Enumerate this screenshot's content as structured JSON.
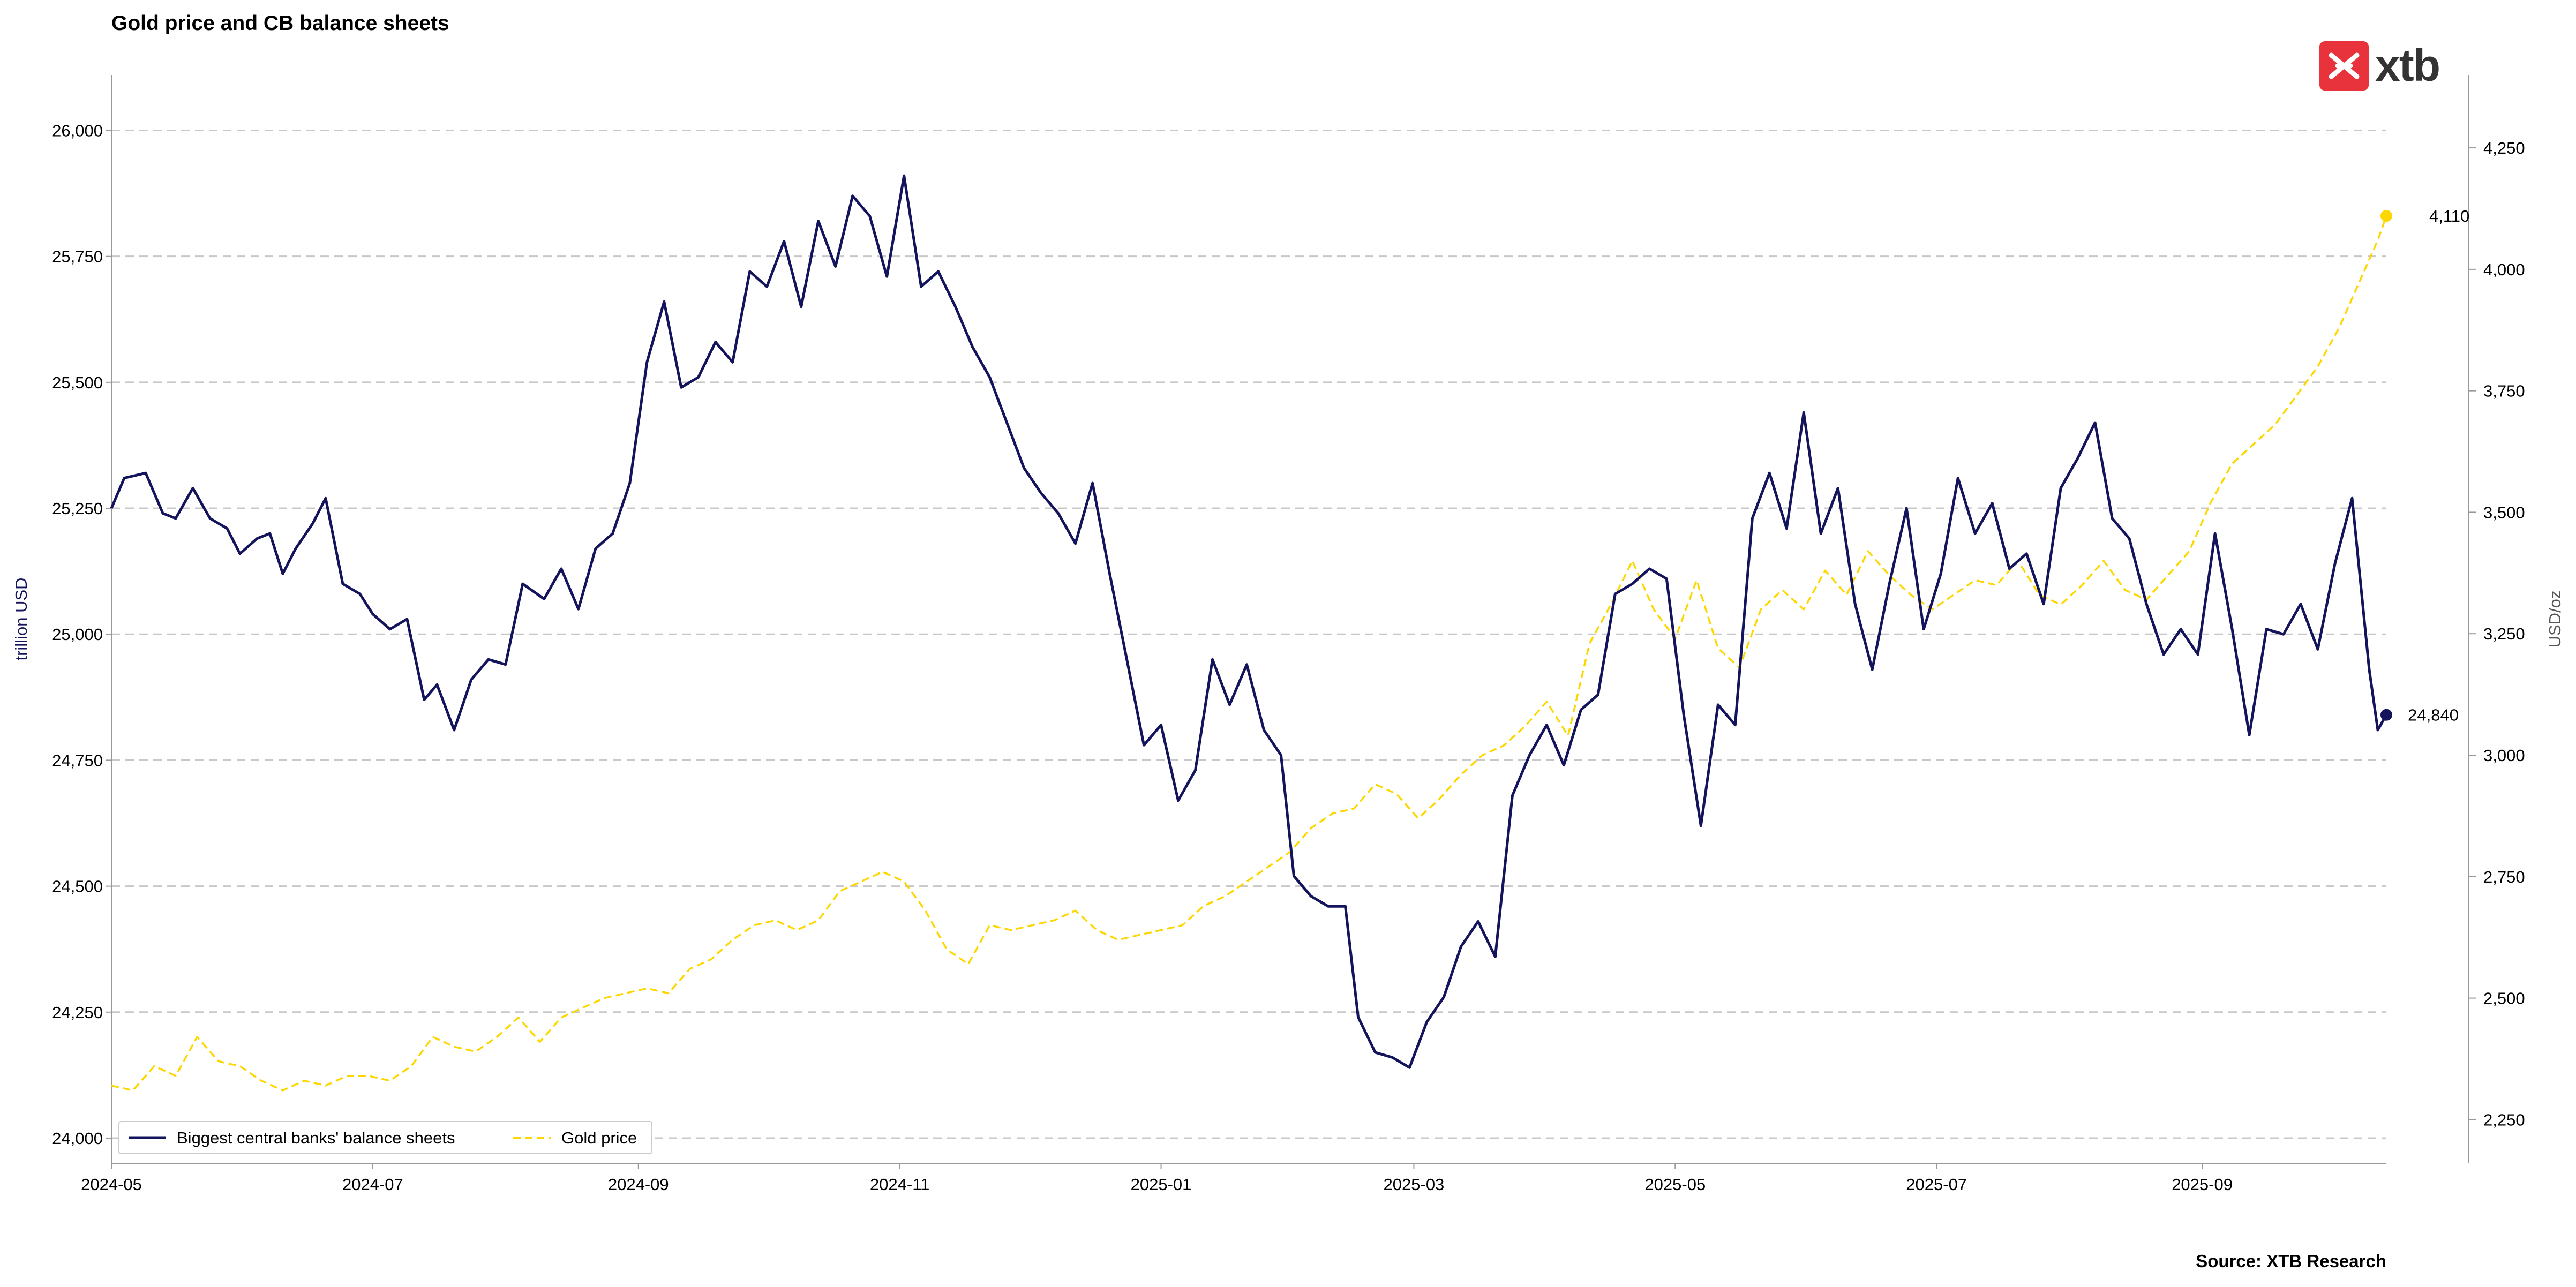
{
  "brand": {
    "name": "xtb",
    "colors": {
      "logo_red": "#E8323C",
      "logo_text": "#333333"
    }
  },
  "source": "Source: XTB Research",
  "colors": {
    "cb_line": "#14145C",
    "gold_line": "#FFD700",
    "grid": "#C8C8C8",
    "axis": "#999999"
  },
  "chart_data": {
    "type": "line",
    "title": "Gold price and CB balance sheets",
    "ylabel_left": "trillion USD",
    "ylabel_right": "USD/oz",
    "xlim": [
      "2024-05-01",
      "2025-10-14"
    ],
    "ylim_left": [
      23950,
      26110
    ],
    "ylim_right": [
      2160,
      4400
    ],
    "grid": "horizontal dashed",
    "legend_position": "bottom-left",
    "x_ticks": [
      "2024-05",
      "2024-07",
      "2024-09",
      "2024-11",
      "2025-01",
      "2025-03",
      "2025-05",
      "2025-07",
      "2025-09"
    ],
    "x_tick_dates": [
      "2024-05-01",
      "2024-07-01",
      "2024-09-01",
      "2024-11-01",
      "2025-01-01",
      "2025-03-01",
      "2025-05-01",
      "2025-07-01",
      "2025-09-01"
    ],
    "y_ticks_left": [
      "24,000",
      "24,250",
      "24,500",
      "24,750",
      "25,000",
      "25,250",
      "25,500",
      "25,750",
      "26,000"
    ],
    "y_tick_values_left": [
      24000,
      24250,
      24500,
      24750,
      25000,
      25250,
      25500,
      25750,
      26000
    ],
    "y_ticks_right": [
      "2,250",
      "2,500",
      "2,750",
      "3,000",
      "3,250",
      "3,500",
      "3,750",
      "4,000",
      "4,250"
    ],
    "y_tick_values_right": [
      2250,
      2500,
      2750,
      3000,
      3250,
      3500,
      3750,
      4000,
      4250
    ],
    "series": [
      {
        "name": "Biggest central banks' balance sheets",
        "axis": "left",
        "style": "solid",
        "last_label": "24,840",
        "points": [
          [
            "2024-05-01",
            25250
          ],
          [
            "2024-05-04",
            25310
          ],
          [
            "2024-05-09",
            25320
          ],
          [
            "2024-05-13",
            25240
          ],
          [
            "2024-05-16",
            25230
          ],
          [
            "2024-05-20",
            25290
          ],
          [
            "2024-05-24",
            25230
          ],
          [
            "2024-05-28",
            25210
          ],
          [
            "2024-05-31",
            25160
          ],
          [
            "2024-06-04",
            25190
          ],
          [
            "2024-06-07",
            25200
          ],
          [
            "2024-06-10",
            25120
          ],
          [
            "2024-06-13",
            25170
          ],
          [
            "2024-06-17",
            25220
          ],
          [
            "2024-06-20",
            25270
          ],
          [
            "2024-06-24",
            25100
          ],
          [
            "2024-06-28",
            25080
          ],
          [
            "2024-07-01",
            25040
          ],
          [
            "2024-07-05",
            25010
          ],
          [
            "2024-07-09",
            25030
          ],
          [
            "2024-07-13",
            24870
          ],
          [
            "2024-07-16",
            24900
          ],
          [
            "2024-07-20",
            24810
          ],
          [
            "2024-07-24",
            24910
          ],
          [
            "2024-07-28",
            24950
          ],
          [
            "2024-08-01",
            24940
          ],
          [
            "2024-08-05",
            25100
          ],
          [
            "2024-08-10",
            25070
          ],
          [
            "2024-08-14",
            25130
          ],
          [
            "2024-08-18",
            25050
          ],
          [
            "2024-08-22",
            25170
          ],
          [
            "2024-08-26",
            25200
          ],
          [
            "2024-08-30",
            25300
          ],
          [
            "2024-09-03",
            25540
          ],
          [
            "2024-09-07",
            25660
          ],
          [
            "2024-09-11",
            25490
          ],
          [
            "2024-09-15",
            25510
          ],
          [
            "2024-09-19",
            25580
          ],
          [
            "2024-09-23",
            25540
          ],
          [
            "2024-09-27",
            25720
          ],
          [
            "2024-10-01",
            25690
          ],
          [
            "2024-10-05",
            25780
          ],
          [
            "2024-10-09",
            25650
          ],
          [
            "2024-10-13",
            25820
          ],
          [
            "2024-10-17",
            25730
          ],
          [
            "2024-10-21",
            25870
          ],
          [
            "2024-10-25",
            25830
          ],
          [
            "2024-10-29",
            25710
          ],
          [
            "2024-11-02",
            25910
          ],
          [
            "2024-11-06",
            25690
          ],
          [
            "2024-11-10",
            25720
          ],
          [
            "2024-11-14",
            25650
          ],
          [
            "2024-11-18",
            25570
          ],
          [
            "2024-11-22",
            25510
          ],
          [
            "2024-11-26",
            25420
          ],
          [
            "2024-11-30",
            25330
          ],
          [
            "2024-12-04",
            25280
          ],
          [
            "2024-12-08",
            25240
          ],
          [
            "2024-12-12",
            25180
          ],
          [
            "2024-12-16",
            25300
          ],
          [
            "2024-12-20",
            25120
          ],
          [
            "2024-12-24",
            24950
          ],
          [
            "2024-12-28",
            24780
          ],
          [
            "2025-01-01",
            24820
          ],
          [
            "2025-01-05",
            24670
          ],
          [
            "2025-01-09",
            24730
          ],
          [
            "2025-01-13",
            24950
          ],
          [
            "2025-01-17",
            24860
          ],
          [
            "2025-01-21",
            24940
          ],
          [
            "2025-01-25",
            24810
          ],
          [
            "2025-01-29",
            24760
          ],
          [
            "2025-02-01",
            24520
          ],
          [
            "2025-02-05",
            24480
          ],
          [
            "2025-02-09",
            24460
          ],
          [
            "2025-02-13",
            24460
          ],
          [
            "2025-02-16",
            24240
          ],
          [
            "2025-02-20",
            24170
          ],
          [
            "2025-02-24",
            24160
          ],
          [
            "2025-02-28",
            24140
          ],
          [
            "2025-03-04",
            24230
          ],
          [
            "2025-03-08",
            24280
          ],
          [
            "2025-03-12",
            24380
          ],
          [
            "2025-03-16",
            24430
          ],
          [
            "2025-03-20",
            24360
          ],
          [
            "2025-03-24",
            24680
          ],
          [
            "2025-03-28",
            24760
          ],
          [
            "2025-04-01",
            24820
          ],
          [
            "2025-04-05",
            24740
          ],
          [
            "2025-04-09",
            24850
          ],
          [
            "2025-04-13",
            24880
          ],
          [
            "2025-04-17",
            25080
          ],
          [
            "2025-04-21",
            25100
          ],
          [
            "2025-04-25",
            25130
          ],
          [
            "2025-04-29",
            25110
          ],
          [
            "2025-05-03",
            24840
          ],
          [
            "2025-05-07",
            24620
          ],
          [
            "2025-05-11",
            24860
          ],
          [
            "2025-05-15",
            24820
          ],
          [
            "2025-05-19",
            25230
          ],
          [
            "2025-05-23",
            25320
          ],
          [
            "2025-05-27",
            25210
          ],
          [
            "2025-05-31",
            25440
          ],
          [
            "2025-06-04",
            25200
          ],
          [
            "2025-06-08",
            25290
          ],
          [
            "2025-06-12",
            25060
          ],
          [
            "2025-06-16",
            24930
          ],
          [
            "2025-06-20",
            25100
          ],
          [
            "2025-06-24",
            25250
          ],
          [
            "2025-06-28",
            25010
          ],
          [
            "2025-07-02",
            25120
          ],
          [
            "2025-07-06",
            25310
          ],
          [
            "2025-07-10",
            25200
          ],
          [
            "2025-07-14",
            25260
          ],
          [
            "2025-07-18",
            25130
          ],
          [
            "2025-07-22",
            25160
          ],
          [
            "2025-07-26",
            25060
          ],
          [
            "2025-07-30",
            25290
          ],
          [
            "2025-08-03",
            25350
          ],
          [
            "2025-08-07",
            25420
          ],
          [
            "2025-08-11",
            25230
          ],
          [
            "2025-08-15",
            25190
          ],
          [
            "2025-08-19",
            25060
          ],
          [
            "2025-08-23",
            24960
          ],
          [
            "2025-08-27",
            25010
          ],
          [
            "2025-08-31",
            24960
          ],
          [
            "2025-09-04",
            25200
          ],
          [
            "2025-09-08",
            25010
          ],
          [
            "2025-09-12",
            24800
          ],
          [
            "2025-09-16",
            25010
          ],
          [
            "2025-09-20",
            25000
          ],
          [
            "2025-09-24",
            25060
          ],
          [
            "2025-09-28",
            24970
          ],
          [
            "2025-10-02",
            25140
          ],
          [
            "2025-10-06",
            25270
          ],
          [
            "2025-10-10",
            24930
          ],
          [
            "2025-10-12",
            24810
          ],
          [
            "2025-10-14",
            24840
          ]
        ]
      },
      {
        "name": "Gold price",
        "axis": "right",
        "style": "dashed",
        "last_label": "4,110",
        "points": [
          [
            "2024-05-01",
            2320
          ],
          [
            "2024-05-06",
            2310
          ],
          [
            "2024-05-11",
            2360
          ],
          [
            "2024-05-16",
            2340
          ],
          [
            "2024-05-21",
            2420
          ],
          [
            "2024-05-26",
            2370
          ],
          [
            "2024-05-31",
            2360
          ],
          [
            "2024-06-05",
            2330
          ],
          [
            "2024-06-10",
            2310
          ],
          [
            "2024-06-15",
            2330
          ],
          [
            "2024-06-20",
            2320
          ],
          [
            "2024-06-25",
            2340
          ],
          [
            "2024-06-30",
            2340
          ],
          [
            "2024-07-05",
            2330
          ],
          [
            "2024-07-10",
            2360
          ],
          [
            "2024-07-15",
            2420
          ],
          [
            "2024-07-20",
            2400
          ],
          [
            "2024-07-25",
            2390
          ],
          [
            "2024-07-30",
            2420
          ],
          [
            "2024-08-04",
            2460
          ],
          [
            "2024-08-09",
            2410
          ],
          [
            "2024-08-14",
            2460
          ],
          [
            "2024-08-19",
            2480
          ],
          [
            "2024-08-24",
            2500
          ],
          [
            "2024-08-29",
            2510
          ],
          [
            "2024-09-03",
            2520
          ],
          [
            "2024-09-08",
            2510
          ],
          [
            "2024-09-13",
            2560
          ],
          [
            "2024-09-18",
            2580
          ],
          [
            "2024-09-23",
            2620
          ],
          [
            "2024-09-28",
            2650
          ],
          [
            "2024-10-03",
            2660
          ],
          [
            "2024-10-08",
            2640
          ],
          [
            "2024-10-13",
            2660
          ],
          [
            "2024-10-18",
            2720
          ],
          [
            "2024-10-23",
            2740
          ],
          [
            "2024-10-28",
            2760
          ],
          [
            "2024-11-02",
            2740
          ],
          [
            "2024-11-07",
            2680
          ],
          [
            "2024-11-12",
            2600
          ],
          [
            "2024-11-17",
            2570
          ],
          [
            "2024-11-22",
            2650
          ],
          [
            "2024-11-27",
            2640
          ],
          [
            "2024-12-02",
            2650
          ],
          [
            "2024-12-07",
            2660
          ],
          [
            "2024-12-12",
            2680
          ],
          [
            "2024-12-17",
            2640
          ],
          [
            "2024-12-22",
            2620
          ],
          [
            "2024-12-27",
            2630
          ],
          [
            "2025-01-01",
            2640
          ],
          [
            "2025-01-06",
            2650
          ],
          [
            "2025-01-11",
            2690
          ],
          [
            "2025-01-16",
            2710
          ],
          [
            "2025-01-21",
            2740
          ],
          [
            "2025-01-26",
            2770
          ],
          [
            "2025-01-31",
            2800
          ],
          [
            "2025-02-05",
            2850
          ],
          [
            "2025-02-10",
            2880
          ],
          [
            "2025-02-15",
            2890
          ],
          [
            "2025-02-20",
            2940
          ],
          [
            "2025-02-25",
            2920
          ],
          [
            "2025-03-02",
            2870
          ],
          [
            "2025-03-07",
            2910
          ],
          [
            "2025-03-12",
            2960
          ],
          [
            "2025-03-17",
            3000
          ],
          [
            "2025-03-22",
            3020
          ],
          [
            "2025-03-27",
            3060
          ],
          [
            "2025-04-01",
            3110
          ],
          [
            "2025-04-06",
            3040
          ],
          [
            "2025-04-11",
            3230
          ],
          [
            "2025-04-16",
            3310
          ],
          [
            "2025-04-21",
            3400
          ],
          [
            "2025-04-26",
            3300
          ],
          [
            "2025-05-01",
            3240
          ],
          [
            "2025-05-06",
            3360
          ],
          [
            "2025-05-11",
            3220
          ],
          [
            "2025-05-16",
            3180
          ],
          [
            "2025-05-21",
            3300
          ],
          [
            "2025-05-26",
            3340
          ],
          [
            "2025-05-31",
            3300
          ],
          [
            "2025-06-05",
            3380
          ],
          [
            "2025-06-10",
            3330
          ],
          [
            "2025-06-15",
            3420
          ],
          [
            "2025-06-20",
            3370
          ],
          [
            "2025-06-25",
            3330
          ],
          [
            "2025-06-30",
            3300
          ],
          [
            "2025-07-05",
            3330
          ],
          [
            "2025-07-10",
            3360
          ],
          [
            "2025-07-15",
            3350
          ],
          [
            "2025-07-20",
            3400
          ],
          [
            "2025-07-25",
            3330
          ],
          [
            "2025-07-30",
            3310
          ],
          [
            "2025-08-04",
            3350
          ],
          [
            "2025-08-09",
            3400
          ],
          [
            "2025-08-14",
            3340
          ],
          [
            "2025-08-19",
            3320
          ],
          [
            "2025-08-24",
            3370
          ],
          [
            "2025-08-29",
            3420
          ],
          [
            "2025-09-03",
            3520
          ],
          [
            "2025-09-08",
            3600
          ],
          [
            "2025-09-13",
            3640
          ],
          [
            "2025-09-18",
            3680
          ],
          [
            "2025-09-23",
            3740
          ],
          [
            "2025-09-28",
            3800
          ],
          [
            "2025-10-03",
            3880
          ],
          [
            "2025-10-08",
            3980
          ],
          [
            "2025-10-12",
            4060
          ],
          [
            "2025-10-14",
            4110
          ]
        ]
      }
    ]
  }
}
